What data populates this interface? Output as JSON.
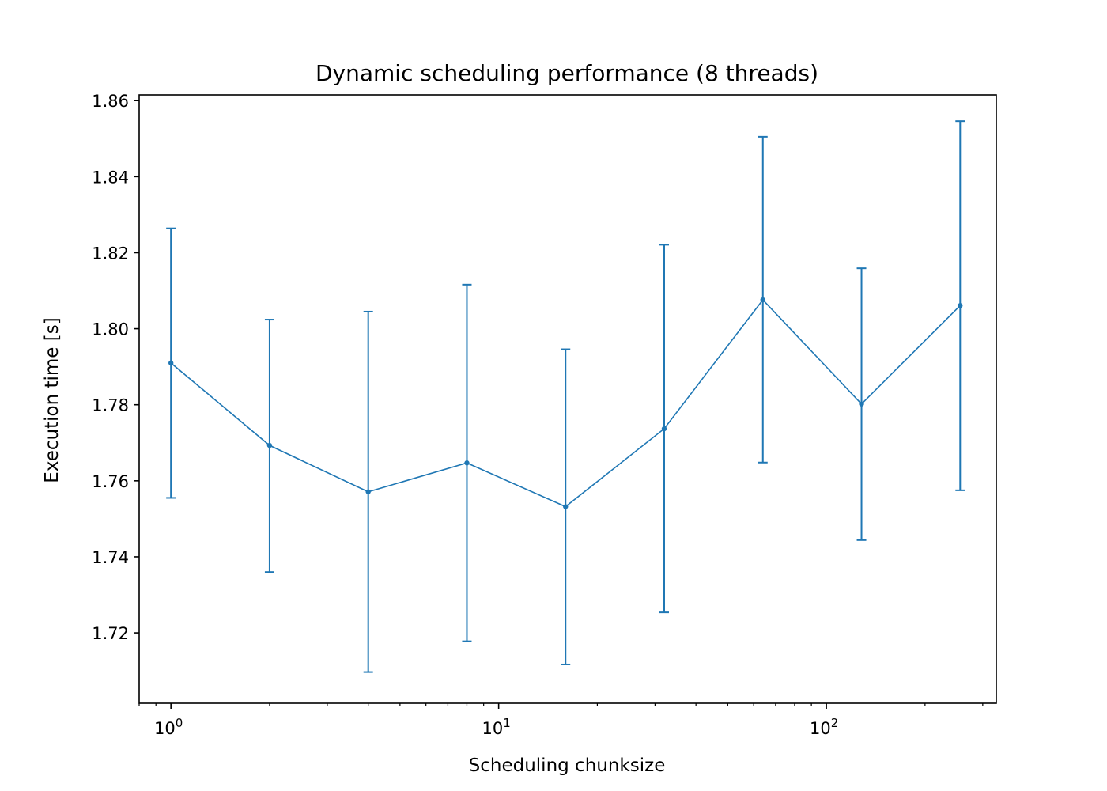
{
  "chart_data": {
    "type": "line",
    "title": "Dynamic scheduling performance (8 threads)",
    "xlabel": "Scheduling chunksize",
    "ylabel": "Execution time [s]",
    "xscale": "log",
    "xlim": [
      0.8,
      330
    ],
    "ylim": [
      1.7015,
      1.8615
    ],
    "grid": false,
    "legend": "none",
    "x_ticks": [
      {
        "value": 1,
        "base": "10",
        "exp": "0"
      },
      {
        "value": 10,
        "base": "10",
        "exp": "1"
      },
      {
        "value": 100,
        "base": "10",
        "exp": "2"
      }
    ],
    "y_ticks": [
      {
        "value": 1.72,
        "label": "1.72"
      },
      {
        "value": 1.74,
        "label": "1.74"
      },
      {
        "value": 1.76,
        "label": "1.76"
      },
      {
        "value": 1.78,
        "label": "1.78"
      },
      {
        "value": 1.8,
        "label": "1.80"
      },
      {
        "value": 1.82,
        "label": "1.82"
      },
      {
        "value": 1.84,
        "label": "1.84"
      },
      {
        "value": 1.86,
        "label": "1.86"
      }
    ],
    "series": [
      {
        "color": "#1f77b4",
        "x": [
          1,
          2,
          4,
          8,
          16,
          32,
          64,
          128,
          256
        ],
        "y": [
          1.791,
          1.7693,
          1.7571,
          1.7647,
          1.7532,
          1.7737,
          1.8076,
          1.7802,
          1.8061
        ],
        "yerr_low": [
          1.7555,
          1.736,
          1.7097,
          1.7178,
          1.7117,
          1.7254,
          1.7648,
          1.7444,
          1.7575
        ],
        "yerr_high": [
          1.8264,
          1.8024,
          1.8045,
          1.8116,
          1.7946,
          1.8221,
          1.8505,
          1.8159,
          1.8546
        ]
      }
    ]
  }
}
